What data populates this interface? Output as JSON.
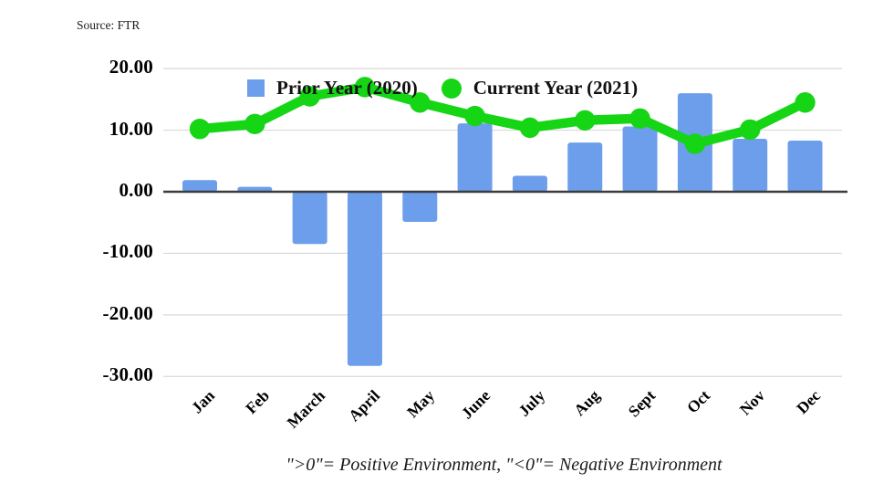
{
  "source": {
    "text": "Source: FTR"
  },
  "footer": {
    "caption": "\">0\"= Positive Environment, \"<0\"= Negative Environment"
  },
  "chart_data": {
    "type": "bar",
    "subtype": "combo: bar series + line series with circle markers",
    "title": "",
    "xlabel": "",
    "ylabel": "",
    "categories": [
      "Jan",
      "Feb",
      "March",
      "April",
      "May",
      "June",
      "July",
      "Aug",
      "Sept",
      "Oct",
      "Nov",
      "Dec"
    ],
    "series": [
      {
        "name": "Prior Year (2020)",
        "type": "bar",
        "color": "#6d9eeb",
        "values": [
          1.9,
          0.8,
          -8.5,
          -28.3,
          -4.9,
          11.1,
          2.6,
          8.0,
          10.6,
          16.0,
          8.6,
          8.3
        ]
      },
      {
        "name": "Current Year (2021)",
        "type": "line",
        "color": "#15d515",
        "values": [
          10.2,
          11.0,
          15.5,
          17.0,
          14.5,
          12.3,
          10.4,
          11.6,
          11.9,
          7.8,
          10.1,
          14.5
        ]
      }
    ],
    "ylim": [
      -30,
      20
    ],
    "yticks": [
      {
        "value": 20,
        "label": "20.00"
      },
      {
        "value": 10,
        "label": "10.00"
      },
      {
        "value": 0,
        "label": "0.00"
      },
      {
        "value": -10,
        "label": "-10.00"
      },
      {
        "value": -20,
        "label": "-20.00"
      },
      {
        "value": -30,
        "label": "-30.00"
      }
    ],
    "grid": "horizontal gridlines on, dark zero axis line",
    "legend_position": "top-inside",
    "colors": {
      "bar": "#6d9eeb",
      "line": "#15d515",
      "gridline": "#d9d9d9",
      "zero_line": "#3c3c3c",
      "text": "#1a1a1a"
    }
  }
}
